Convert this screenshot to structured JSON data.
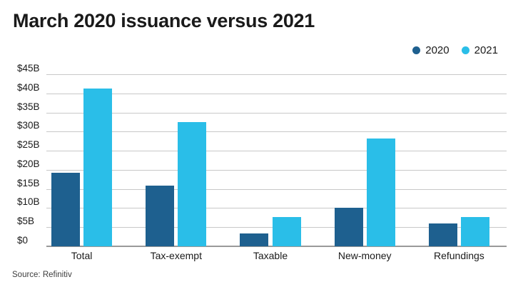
{
  "page": {
    "title": "March 2020 issuance versus 2021",
    "source": "Source: Refinitiv"
  },
  "colors": {
    "series_2020": "#1e608f",
    "series_2021": "#2abee8",
    "gridline": "#c8c8c8",
    "axis_line": "#9a9a9a",
    "text": "#1a1a1a"
  },
  "chart_data": {
    "type": "bar",
    "title": "March 2020 issuance versus 2021",
    "categories": [
      "Total",
      "Tax-exempt",
      "Taxable",
      "New-money",
      "Refundings"
    ],
    "series": [
      {
        "name": "2020",
        "color": "#1e608f",
        "values": [
          19.3,
          15.9,
          3.4,
          10.1,
          6.0
        ]
      },
      {
        "name": "2021",
        "color": "#2abee8",
        "values": [
          41.3,
          32.4,
          7.6,
          28.2,
          7.7
        ]
      }
    ],
    "xlabel": "",
    "ylabel": "",
    "ylim": [
      0,
      45
    ],
    "ytick_step": 5,
    "yticks": [
      {
        "value": 0,
        "label": "$0"
      },
      {
        "value": 5,
        "label": "$5B"
      },
      {
        "value": 10,
        "label": "$10B"
      },
      {
        "value": 15,
        "label": "$15B"
      },
      {
        "value": 20,
        "label": "$20B"
      },
      {
        "value": 25,
        "label": "$25B"
      },
      {
        "value": 30,
        "label": "$30B"
      },
      {
        "value": 35,
        "label": "$35B"
      },
      {
        "value": 40,
        "label": "$40B"
      },
      {
        "value": 45,
        "label": "$45B"
      }
    ],
    "grid": true,
    "legend_position": "top-right",
    "source": "Source: Refinitiv"
  }
}
